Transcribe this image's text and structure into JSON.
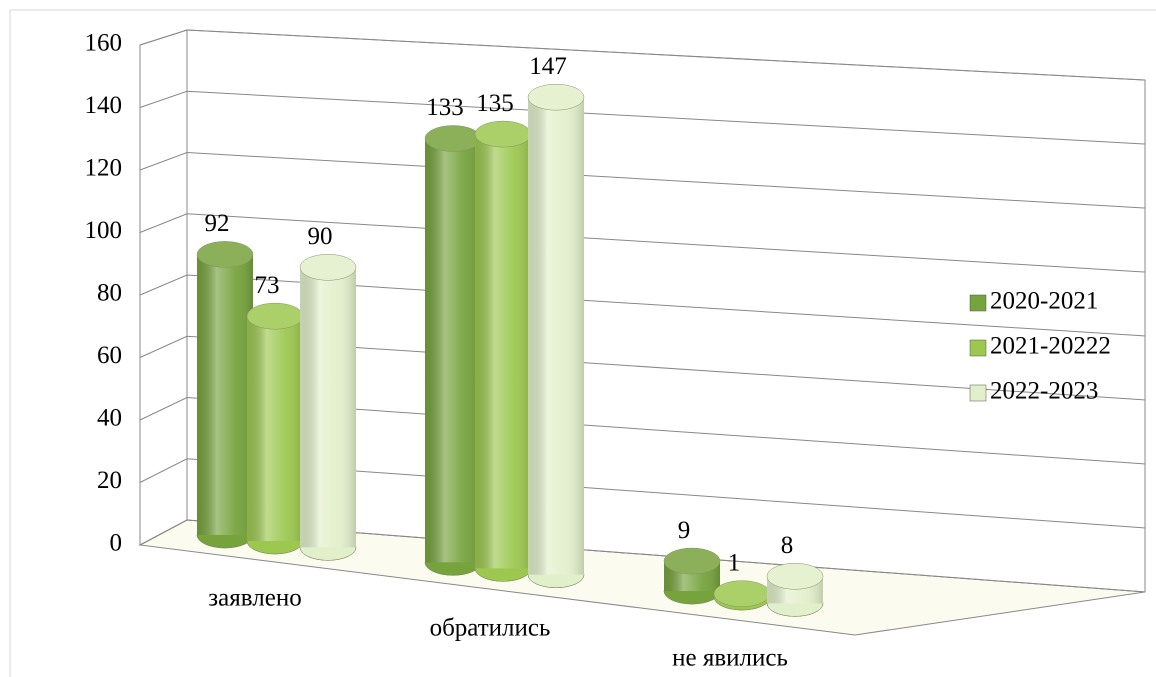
{
  "chart_data": {
    "type": "bar3d",
    "categories": [
      "заявлено",
      "обратились",
      "не явились"
    ],
    "series": [
      {
        "name": "2020-2021",
        "color": "#77a33d",
        "values": [
          92,
          133,
          9
        ]
      },
      {
        "name": "2021-20222",
        "color": "#9dc850",
        "values": [
          73,
          135,
          1
        ]
      },
      {
        "name": "2022-2023",
        "color": "#e2efcb",
        "values": [
          90,
          147,
          8
        ]
      }
    ],
    "ylim": [
      0,
      160
    ],
    "yticks": [
      0,
      20,
      40,
      60,
      80,
      100,
      120,
      140,
      160
    ],
    "grid": true,
    "legend": "right"
  }
}
